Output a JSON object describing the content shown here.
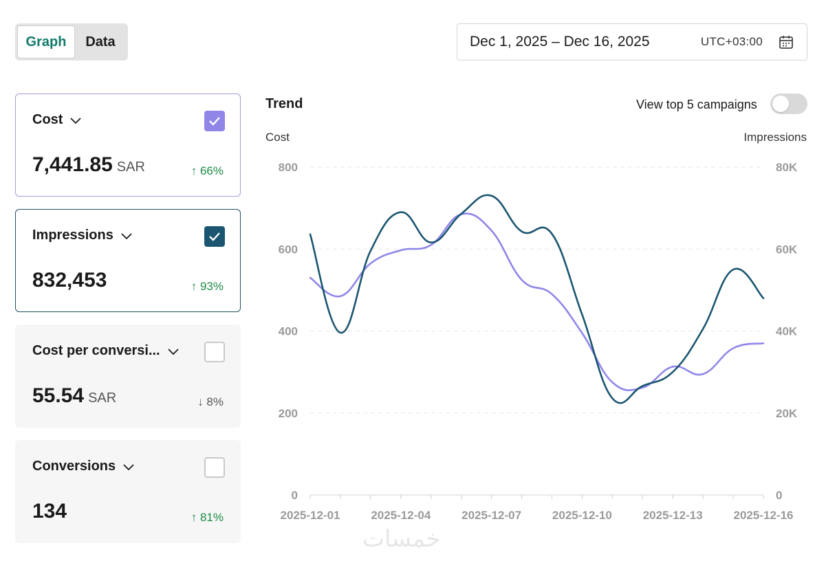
{
  "view_toggle": {
    "graph_label": "Graph",
    "data_label": "Data",
    "active": "Graph"
  },
  "date_range": {
    "label": "Dec 1, 2025 – Dec 16, 2025",
    "timezone": "UTC+03:00",
    "icon": "calendar-icon"
  },
  "metrics": [
    {
      "name": "Cost",
      "value": "7,441.85",
      "unit": "SAR",
      "change": "↑ 66%",
      "direction": "up",
      "checked": true,
      "color": "#8f86e8"
    },
    {
      "name": "Impressions",
      "value": "832,453",
      "unit": "",
      "change": "↑ 93%",
      "direction": "up",
      "checked": true,
      "color": "#1b5570"
    },
    {
      "name": "Cost per conversi...",
      "value": "55.54",
      "unit": "SAR",
      "change": "↓ 8%",
      "direction": "down",
      "checked": false
    },
    {
      "name": "Conversions",
      "value": "134",
      "unit": "",
      "change": "↑ 81%",
      "direction": "up",
      "checked": false
    }
  ],
  "trend": {
    "title": "Trend",
    "top5_label": "View top 5 campaigns",
    "top5_enabled": false
  },
  "colors": {
    "accent": "#127a6b",
    "cost_series": "#8f86e8",
    "impressions_series": "#1b5570",
    "positive": "#1e8a45"
  },
  "chart_data": {
    "type": "line",
    "ylabel_left": "Cost",
    "ylabel_right": "Impressions",
    "ylim_left": [
      0,
      800
    ],
    "ylim_right": [
      0,
      80000
    ],
    "yticks_left": [
      "0",
      "200",
      "400",
      "600",
      "800"
    ],
    "yticks_right": [
      "0",
      "20K",
      "40K",
      "60K",
      "80K"
    ],
    "x": [
      "2025-12-01",
      "2025-12-02",
      "2025-12-03",
      "2025-12-04",
      "2025-12-05",
      "2025-12-06",
      "2025-12-07",
      "2025-12-08",
      "2025-12-09",
      "2025-12-10",
      "2025-12-11",
      "2025-12-12",
      "2025-12-13",
      "2025-12-14",
      "2025-12-15",
      "2025-12-16"
    ],
    "xtick_labels": [
      "2025-12-01",
      "2025-12-04",
      "2025-12-07",
      "2025-12-10",
      "2025-12-13",
      "2025-12-16"
    ],
    "grid": true,
    "series": [
      {
        "name": "Cost",
        "axis": "left",
        "values": [
          530,
          485,
          565,
          597,
          610,
          685,
          645,
          525,
          490,
          395,
          275,
          262,
          313,
          295,
          358,
          370
        ]
      },
      {
        "name": "Impressions",
        "axis": "right",
        "values": [
          63600,
          39600,
          59600,
          69000,
          61600,
          68600,
          73000,
          64300,
          63700,
          44000,
          23600,
          26600,
          30000,
          40500,
          55000,
          48000
        ]
      }
    ]
  }
}
